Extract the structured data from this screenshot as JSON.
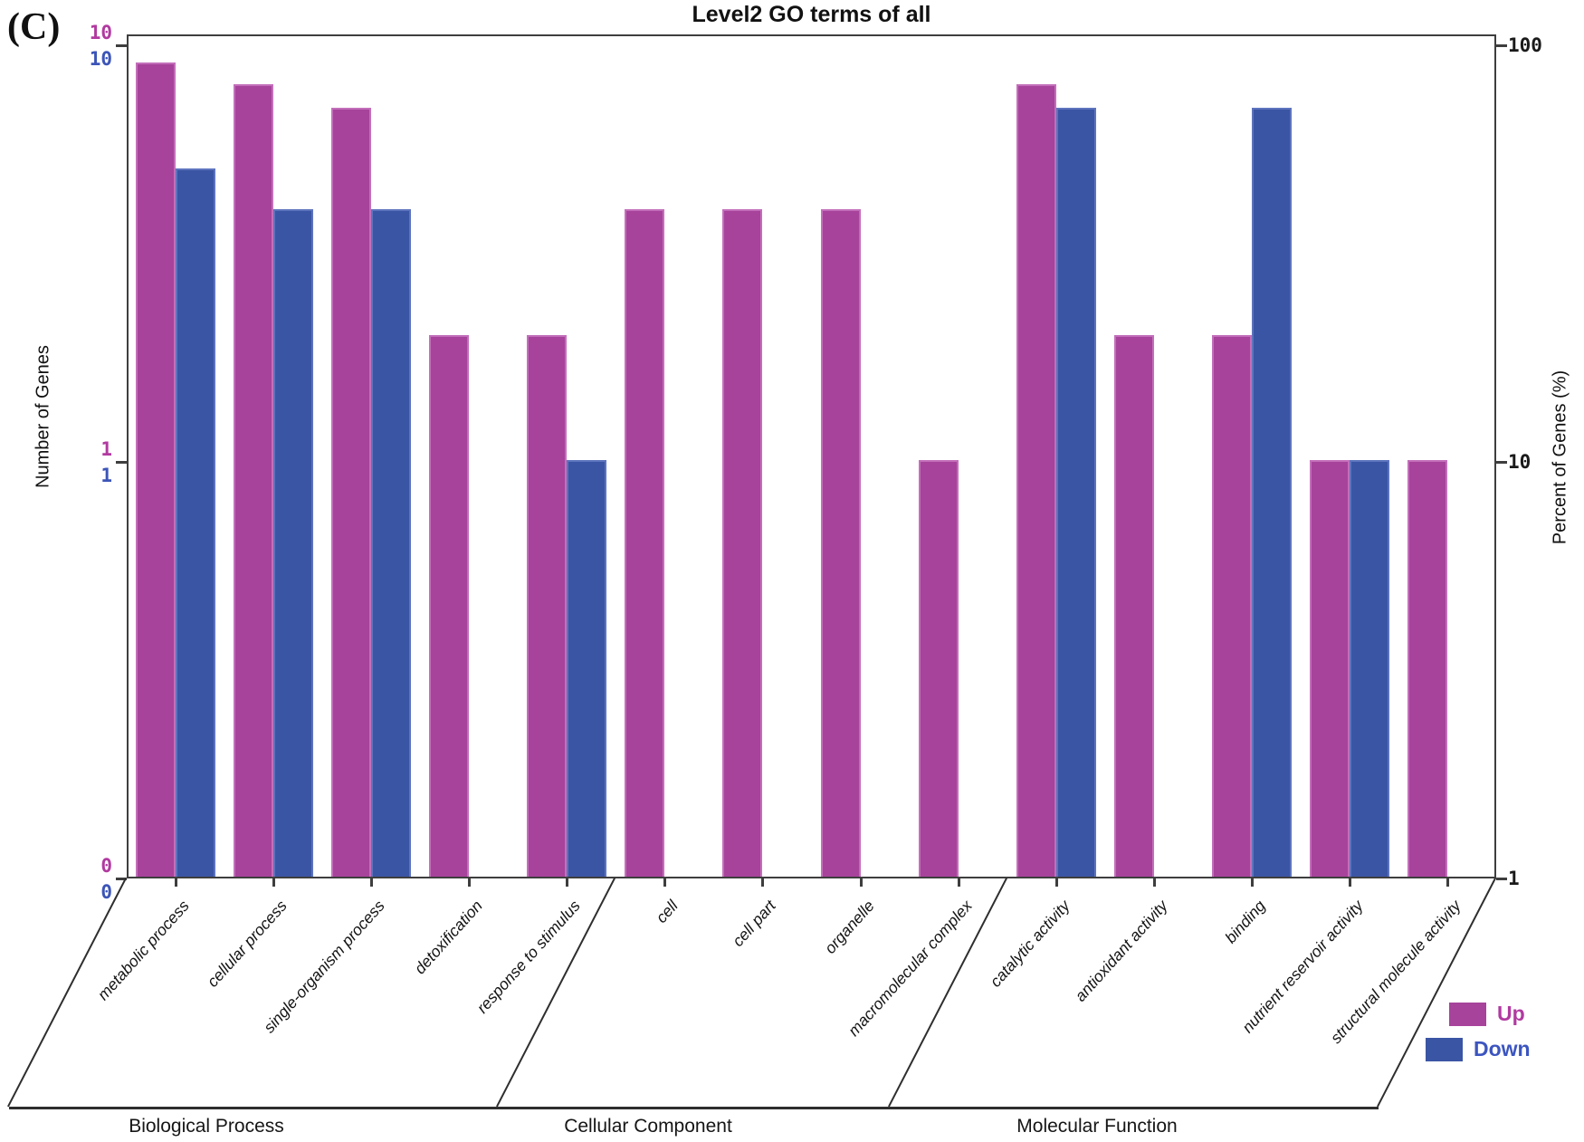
{
  "panel_label": "(C)",
  "title": "Level2 GO terms of all",
  "left_axis": {
    "label": "Number of Genes",
    "ticks": [
      {
        "up_label": "10",
        "down_label": "10",
        "value": 10
      },
      {
        "up_label": "1",
        "down_label": "1",
        "value": 1
      },
      {
        "up_label": "0",
        "down_label": "0",
        "value": 0
      }
    ]
  },
  "right_axis": {
    "label": "Percent of Genes (%)",
    "ticks": [
      "100",
      "10",
      "1"
    ]
  },
  "legend": [
    {
      "label": "Up",
      "color": "#a7439b",
      "text_color": "#b13aa0"
    },
    {
      "label": "Down",
      "color": "#3b55a5",
      "text_color": "#3c55c0"
    }
  ],
  "groups": [
    {
      "label": "Biological Process",
      "category_count": 5
    },
    {
      "label": "Cellular Component",
      "category_count": 4
    },
    {
      "label": "Molecular Function",
      "category_count": 5
    }
  ],
  "chart_data": {
    "type": "bar",
    "title": "Level2 GO terms of all",
    "scale": "log",
    "xlabel": "",
    "ylabel_left": "Number of Genes",
    "ylabel_right": "Percent of Genes (%)",
    "left_axis_ticks": [
      10,
      1,
      0
    ],
    "right_axis_ticks_percent": [
      100,
      10,
      1
    ],
    "legend_position": "bottom-right",
    "grid": false,
    "categories": [
      "metabolic process",
      "cellular process",
      "single-organism process",
      "detoxification",
      "response to stimulus",
      "cell",
      "cell part",
      "organelle",
      "macromolecular complex",
      "catalytic activity",
      "antioxidant activity",
      "binding",
      "nutrient reservoir activity",
      "structural molecule activity"
    ],
    "category_groups": [
      {
        "label": "Biological Process",
        "start": 0,
        "end": 4
      },
      {
        "label": "Cellular Component",
        "start": 5,
        "end": 8
      },
      {
        "label": "Molecular Function",
        "start": 9,
        "end": 13
      }
    ],
    "series": [
      {
        "name": "Up",
        "color": "#a7439b",
        "genes": [
          9,
          8,
          7,
          2,
          2,
          4,
          4,
          4,
          1,
          8,
          2,
          2,
          1,
          1
        ],
        "percent": [
          90,
          80,
          70,
          20,
          20,
          40,
          40,
          40,
          10,
          80,
          20,
          20,
          10,
          10
        ]
      },
      {
        "name": "Down",
        "color": "#3b55a5",
        "genes": [
          5,
          4,
          4,
          0,
          1,
          0,
          0,
          0,
          0,
          7,
          0,
          7,
          1,
          0
        ],
        "percent": [
          50,
          40,
          40,
          0,
          10,
          0,
          0,
          0,
          0,
          70,
          0,
          70,
          10,
          0
        ]
      }
    ]
  },
  "colors": {
    "up_bar": "#a7439b",
    "up_bar_edge": "#c36fba",
    "down_bar": "#3b55a5",
    "down_bar_edge": "#5d74bd",
    "axis": "#3e3e3e",
    "magenta_tick_text": "#b13aa0",
    "blue_tick_text": "#3c55b8",
    "black_text": "#111111"
  }
}
